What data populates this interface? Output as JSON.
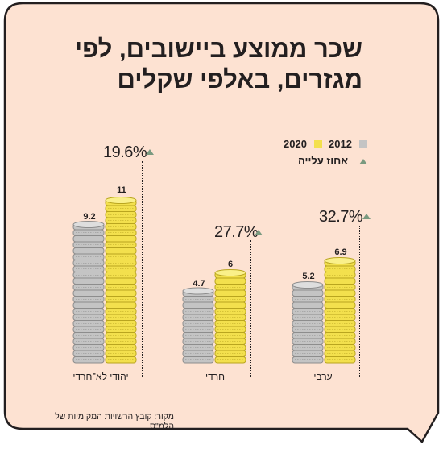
{
  "title_line1": "שכר ממוצע ביישובים, לפי",
  "title_line2": "מגזרים, באלפי שקלים",
  "legend": {
    "year2012": "2012",
    "year2020": "2020",
    "increase": "אחוז עלייה",
    "color2012": "#c4c4c4",
    "color2020": "#f3e04d",
    "triangle_color": "#7a9a80"
  },
  "chart_data": {
    "type": "bar",
    "categories": [
      "יהודי לא־חרדי",
      "חרדי",
      "ערבי"
    ],
    "series": [
      {
        "name": "2012",
        "values": [
          9.2,
          4.7,
          5.2
        ]
      },
      {
        "name": "2020",
        "values": [
          11,
          6,
          6.9
        ]
      }
    ],
    "increase_pct": [
      "19.6%",
      "27.7%",
      "32.7%"
    ],
    "value_labels_2012": [
      "9.2",
      "4.7",
      "5.2"
    ],
    "value_labels_2020": [
      "11",
      "6",
      "6.9"
    ],
    "title": "שכר ממוצע ביישובים, לפי מגזרים, באלפי שקלים"
  },
  "source": "מקור: קובץ הרשויות המקומיות של הלמ\"ס",
  "colors": {
    "background": "#fde2d2",
    "border": "#231f20",
    "silver": "#c4c4c4",
    "gold": "#f3e04d"
  }
}
